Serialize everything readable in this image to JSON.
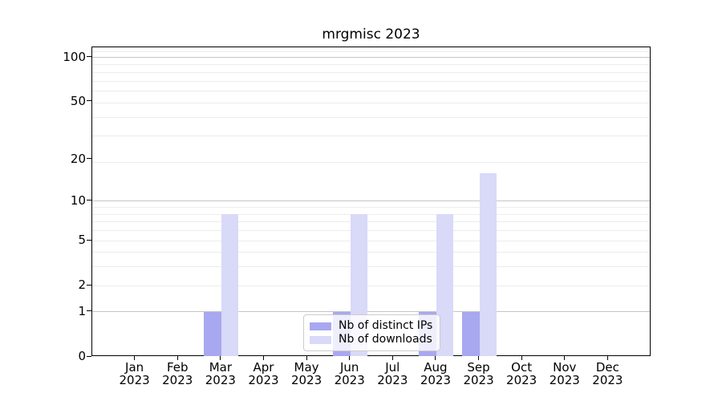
{
  "chart_data": {
    "type": "bar",
    "title": "mrgmisc 2023",
    "xlabel": "",
    "ylabel": "",
    "categories": [
      "Jan",
      "Feb",
      "Mar",
      "Apr",
      "May",
      "Jun",
      "Jul",
      "Aug",
      "Sep",
      "Oct",
      "Nov",
      "Dec"
    ],
    "x_year_label": "2023",
    "series": [
      {
        "name": "Nb of distinct IPs",
        "color": "#a8a8f0",
        "values": [
          0,
          0,
          1,
          0,
          0,
          1,
          0,
          1,
          1,
          0,
          0,
          0
        ]
      },
      {
        "name": "Nb of downloads",
        "color": "#d9d9f8",
        "values": [
          0,
          0,
          8,
          0,
          0,
          8,
          0,
          8,
          16,
          0,
          0,
          0
        ]
      }
    ],
    "y_axis": {
      "scale": "log1p",
      "ticks": [
        0,
        1,
        2,
        5,
        10,
        20,
        50,
        100
      ],
      "range": [
        0,
        117
      ],
      "major_gridlines": [
        1,
        10,
        100
      ],
      "minor_gridlines": [
        2,
        3,
        4,
        5,
        6,
        7,
        8,
        9,
        19,
        29,
        39,
        49,
        59,
        69,
        79,
        89,
        109
      ]
    },
    "grid": true,
    "legend": {
      "position": "lower center",
      "entries": [
        "Nb of distinct IPs",
        "Nb of downloads"
      ]
    }
  },
  "colors": {
    "bar_distinct_ips": "#a8a8f0",
    "bar_downloads": "#d9d9f8",
    "major_grid": "#c5c5c5",
    "minor_grid": "#ececec",
    "spine": "#000000",
    "text": "#000000",
    "legend_border": "#cccccc",
    "legend_background": "rgba(255,255,255,0.8)"
  }
}
